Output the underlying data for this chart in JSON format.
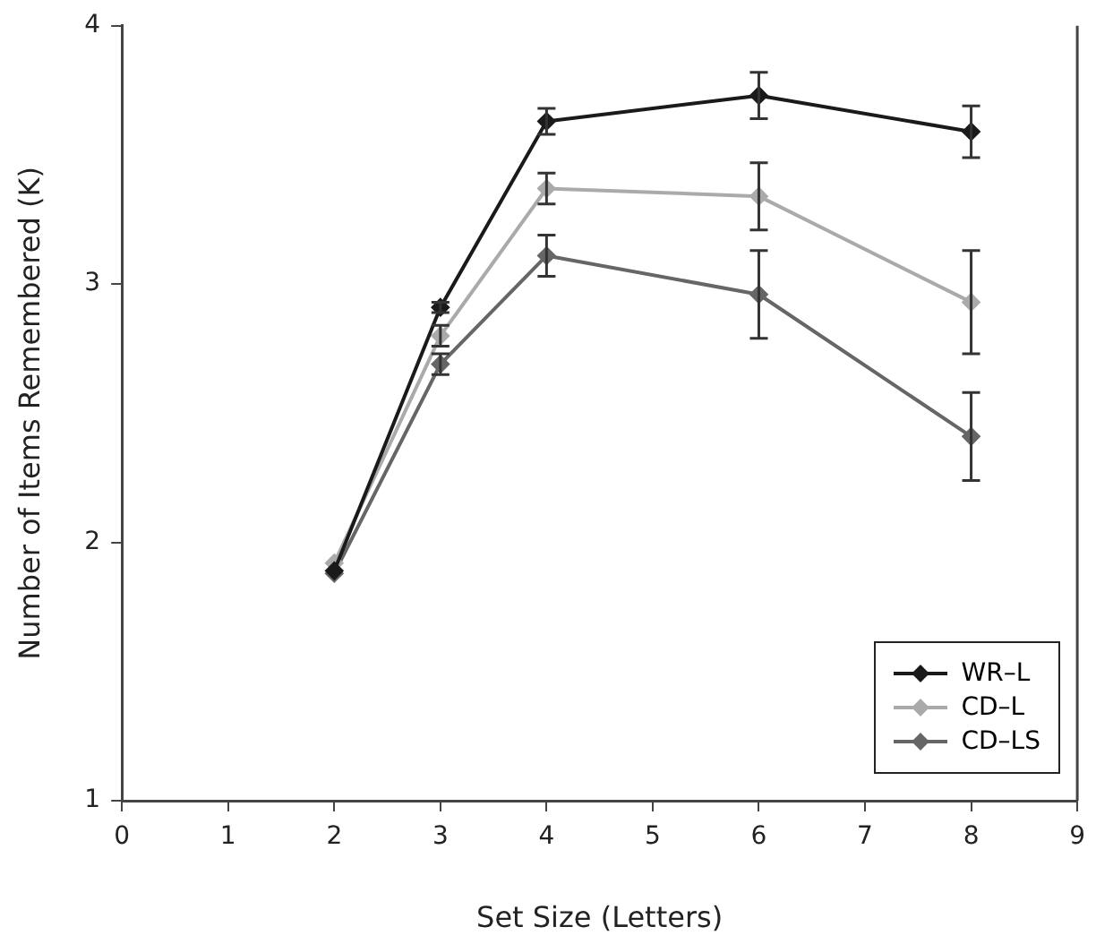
{
  "chart_data": {
    "type": "line",
    "xlabel": "Set Size (Letters)",
    "ylabel": "Number of Items Remembered (K)",
    "xlim": [
      0,
      9
    ],
    "xticks": [
      0,
      1,
      2,
      3,
      4,
      5,
      6,
      7,
      8,
      9
    ],
    "ylim": [
      1,
      4
    ],
    "yticks": [
      1,
      2,
      3,
      4
    ],
    "grid": false,
    "legend": "bottom right",
    "marker": "diamond",
    "line_style": "solid",
    "x": [
      2,
      3,
      4,
      6,
      8
    ],
    "series": [
      {
        "name": "WR–L",
        "color": "#1a1a1a",
        "values": [
          1.89,
          2.91,
          3.63,
          3.73,
          3.59
        ],
        "errors": [
          null,
          0.02,
          0.05,
          0.09,
          0.1
        ]
      },
      {
        "name": "CD–L",
        "color": "#aaaaaa",
        "values": [
          1.92,
          2.8,
          3.37,
          3.34,
          2.93
        ],
        "errors": [
          null,
          0.04,
          0.06,
          0.13,
          0.2
        ]
      },
      {
        "name": "CD–LS",
        "color": "#666666",
        "values": [
          1.88,
          2.69,
          3.11,
          2.96,
          2.41
        ],
        "errors": [
          null,
          0.04,
          0.08,
          0.17,
          0.17
        ]
      }
    ]
  }
}
